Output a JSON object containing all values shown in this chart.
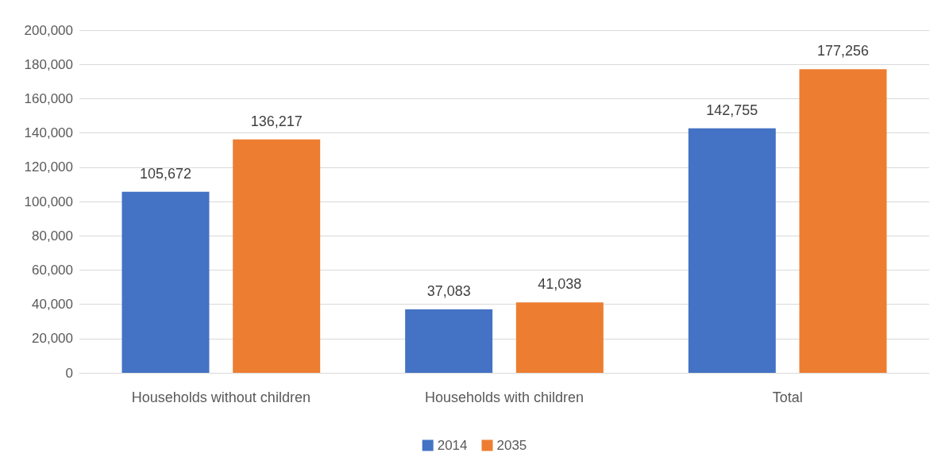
{
  "chart_data": {
    "type": "bar",
    "categories": [
      "Households without children",
      "Households with children",
      "Total"
    ],
    "series": [
      {
        "name": "2014",
        "color": "#4472c4",
        "values": [
          105672,
          37083,
          142755
        ],
        "value_labels": [
          "105,672",
          "37,083",
          "142,755"
        ]
      },
      {
        "name": "2035",
        "color": "#ed7d31",
        "values": [
          136217,
          41038,
          177256
        ],
        "value_labels": [
          "136,217",
          "41,038",
          "177,256"
        ]
      }
    ],
    "ylim": [
      0,
      200000
    ],
    "yticks": [
      0,
      {
        "value": 20000,
        "label": "20,000"
      },
      {
        "value": 40000,
        "label": "40,000"
      },
      {
        "value": 60000,
        "label": "60,000"
      },
      {
        "value": 80000,
        "label": "80,000"
      },
      {
        "value": 100000,
        "label": "100,000"
      },
      {
        "value": 120000,
        "label": "120,000"
      },
      {
        "value": 140000,
        "label": "140,000"
      },
      {
        "value": 160000,
        "label": "160,000"
      },
      {
        "value": 180000,
        "label": "180,000"
      },
      {
        "value": 200000,
        "label": "200,000"
      }
    ],
    "grid": "y",
    "legend": "bottom"
  }
}
